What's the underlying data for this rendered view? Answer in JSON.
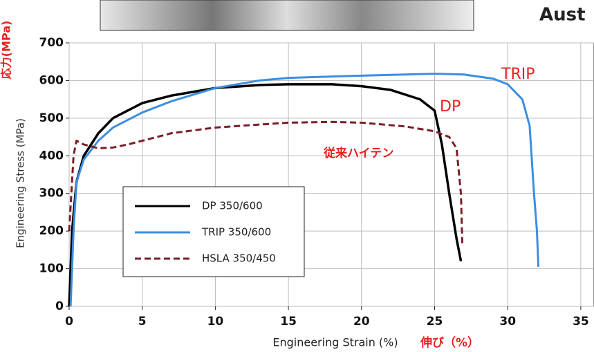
{
  "chart_data": {
    "type": "line",
    "header_fragment": "Aust",
    "y_label": "Engineering Stress (MPa)",
    "y_label_ja": "応力(MPa)",
    "x_label": "Engineering Strain (%)",
    "x_label_ja": "伸び（%）",
    "annotations": [
      "TRIP",
      "DP",
      "従来ハイテン"
    ],
    "annotation_color": "#e8201c",
    "xlim": [
      0,
      35
    ],
    "xticks": [
      0,
      5,
      10,
      15,
      20,
      25,
      30,
      35
    ],
    "ylim": [
      0,
      700
    ],
    "yticks": [
      0,
      100,
      200,
      300,
      400,
      500,
      600,
      700
    ],
    "grid": true,
    "series": [
      {
        "name": "DP 350/600",
        "color": "#000000",
        "linestyle": "solid",
        "x": [
          0,
          0.2,
          0.5,
          1,
          2,
          3,
          5,
          7,
          10,
          13,
          15,
          18,
          20,
          22,
          24,
          25,
          25.5,
          26,
          26.5,
          26.8
        ],
        "values": [
          0,
          200,
          330,
          400,
          460,
          500,
          540,
          560,
          580,
          588,
          590,
          590,
          585,
          575,
          550,
          520,
          430,
          300,
          180,
          120
        ]
      },
      {
        "name": "TRIP 350/600",
        "color": "#3b8ee0",
        "linestyle": "solid",
        "x": [
          0.1,
          0.3,
          0.5,
          1,
          2,
          3,
          5,
          7,
          10,
          13,
          15,
          20,
          25,
          27,
          29,
          30,
          31,
          31.5,
          31.8,
          32,
          32.1
        ],
        "values": [
          0,
          200,
          330,
          390,
          440,
          475,
          515,
          545,
          580,
          600,
          607,
          613,
          618,
          616,
          605,
          590,
          550,
          480,
          300,
          200,
          105
        ]
      },
      {
        "name": "HSLA 350/450",
        "color": "#7a1f28",
        "linestyle": "dashed",
        "x": [
          0,
          0.3,
          0.5,
          1,
          2,
          3,
          4,
          5,
          7,
          10,
          13,
          15,
          18,
          20,
          23,
          25,
          26,
          26.5,
          26.8,
          26.9
        ],
        "values": [
          200,
          400,
          440,
          430,
          420,
          422,
          430,
          440,
          460,
          475,
          483,
          488,
          490,
          488,
          478,
          465,
          450,
          420,
          300,
          160
        ]
      }
    ]
  }
}
